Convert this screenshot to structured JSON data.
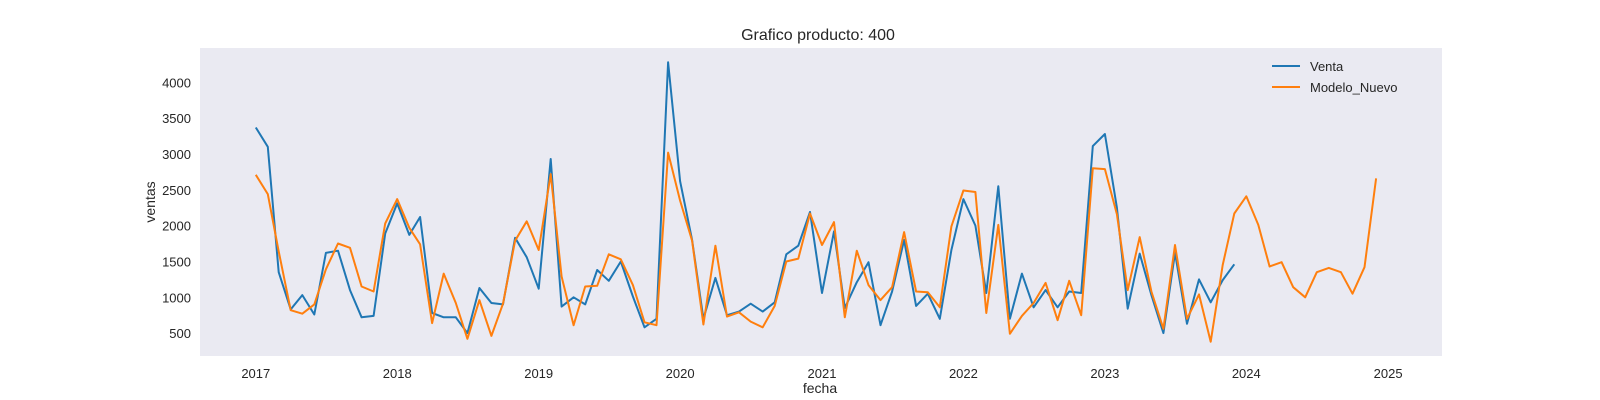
{
  "chart_data": {
    "type": "line",
    "title": "Grafico producto: 400",
    "xlabel": "fecha",
    "ylabel": "ventas",
    "xlim": [
      "2016-08-10",
      "2025-05-20"
    ],
    "ylim": [
      180,
      4480
    ],
    "x_ticks": [
      "2017",
      "2018",
      "2019",
      "2020",
      "2021",
      "2022",
      "2023",
      "2024",
      "2025"
    ],
    "y_ticks": [
      500,
      1000,
      1500,
      2000,
      2500,
      3000,
      3500,
      4000
    ],
    "grid": false,
    "legend": "upper right",
    "plot_background": "#eaeaf2",
    "series": [
      {
        "name": "Venta",
        "color": "#1f77b4",
        "start": "2017-01",
        "values": [
          3370,
          3100,
          1350,
          830,
          1030,
          760,
          1620,
          1650,
          1100,
          720,
          740,
          1890,
          2310,
          1870,
          2120,
          780,
          720,
          720,
          500,
          1130,
          920,
          900,
          1830,
          1560,
          1120,
          2930,
          870,
          1000,
          900,
          1380,
          1230,
          1500,
          1010,
          580,
          700,
          4280,
          2620,
          1800,
          700,
          1270,
          750,
          800,
          910,
          800,
          930,
          1600,
          1720,
          2190,
          1060,
          1920,
          850,
          1210,
          1490,
          610,
          1080,
          1800,
          880,
          1050,
          700,
          1660,
          2370,
          2000,
          1060,
          2550,
          700,
          1330,
          860,
          1100,
          860,
          1080,
          1060,
          3110,
          3280,
          2250,
          840,
          1610,
          1030,
          500,
          1620,
          630,
          1250,
          930,
          1240,
          1460
        ]
      },
      {
        "name": "Modelo_Nuevo",
        "color": "#ff7f0e",
        "start": "2017-01",
        "values": [
          2710,
          2440,
          1640,
          820,
          770,
          900,
          1390,
          1750,
          1690,
          1150,
          1080,
          2030,
          2370,
          1970,
          1740,
          640,
          1330,
          920,
          420,
          960,
          460,
          910,
          1790,
          2060,
          1660,
          2720,
          1290,
          610,
          1150,
          1160,
          1600,
          1530,
          1170,
          650,
          610,
          3020,
          2350,
          1790,
          620,
          1720,
          730,
          790,
          660,
          580,
          880,
          1500,
          1540,
          2170,
          1730,
          2050,
          720,
          1650,
          1170,
          960,
          1140,
          1910,
          1080,
          1070,
          860,
          1990,
          2490,
          2470,
          780,
          2010,
          490,
          740,
          920,
          1200,
          680,
          1230,
          750,
          2800,
          2790,
          2160,
          1100,
          1840,
          1080,
          560,
          1730,
          700,
          1040,
          380,
          1450,
          2170,
          2410,
          2010,
          1430,
          1490,
          1140,
          1000,
          1350,
          1410,
          1350,
          1050,
          1420,
          2660
        ]
      }
    ]
  }
}
